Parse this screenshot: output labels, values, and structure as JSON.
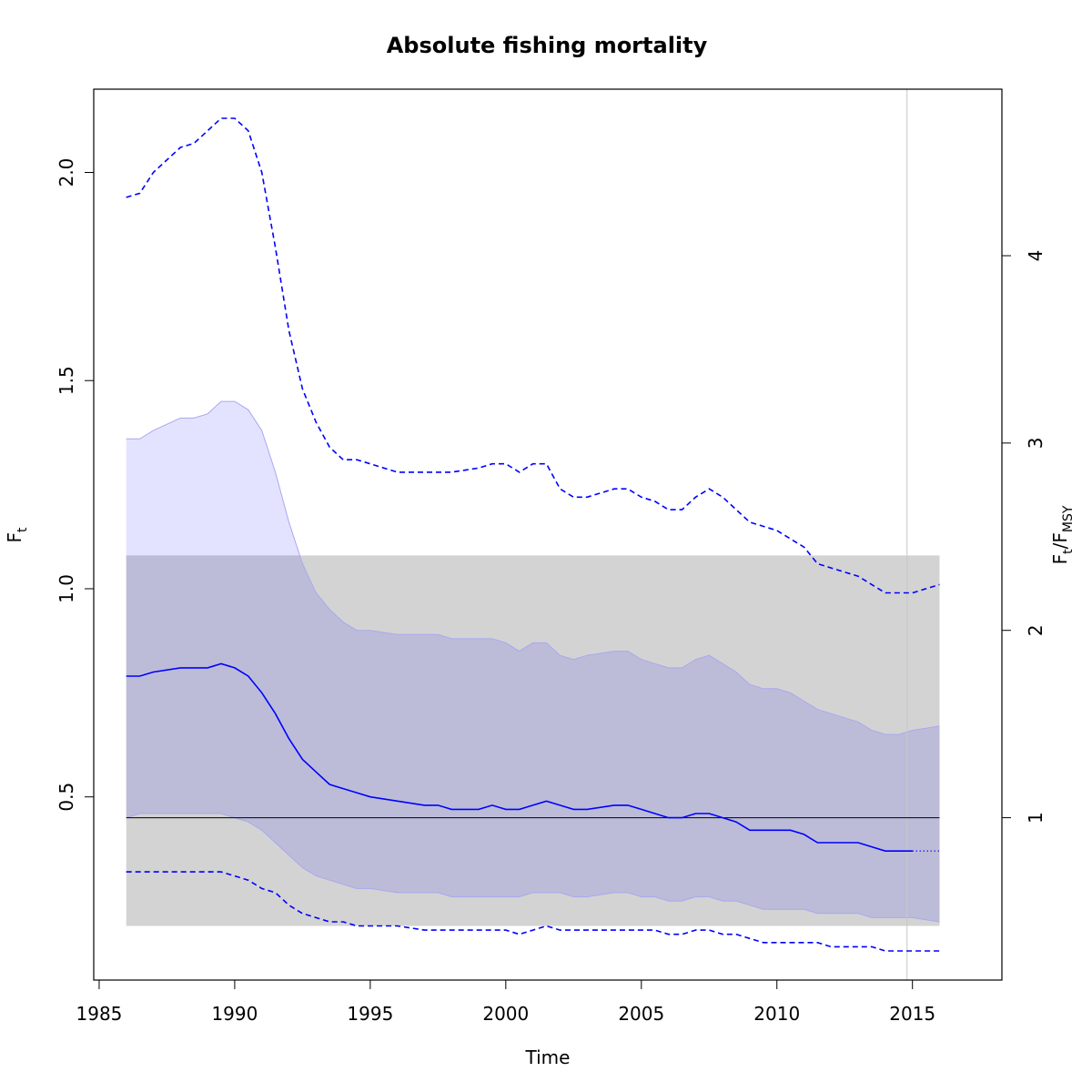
{
  "chart_data": {
    "type": "line",
    "title": "Absolute fishing mortality",
    "xlabel": "Time",
    "ylabel": "F",
    "ylabel_sub": "t",
    "y2label_parts": [
      "F",
      "t",
      "/F",
      "MSY"
    ],
    "xlim": [
      1984.8,
      2018.3
    ],
    "ylim": [
      0.06,
      2.2
    ],
    "x_ticks": [
      1985,
      1990,
      1995,
      2000,
      2005,
      2010,
      2015
    ],
    "y_ticks": [
      0.5,
      1.0,
      1.5,
      2.0
    ],
    "y_tick_labels": [
      "0.5",
      "1.0",
      "1.5",
      "2.0"
    ],
    "y2_ticks": [
      1,
      2,
      3,
      4
    ],
    "fmsy": 0.45,
    "grid": false,
    "legend": "none",
    "colors": {
      "estimate": "#0000ff",
      "ci_fill": "#e3e3ff",
      "ci_edge": "#a8a8f0",
      "fmsy_band": "#d3d3d3",
      "overlap": "#bcbcd9",
      "vline": "#c8c8c8"
    },
    "fmsy_band": {
      "x": [
        1986,
        2016
      ],
      "y": [
        0.19,
        1.08
      ]
    },
    "vertical_line_x": 2014.8,
    "series": [
      {
        "role": "estimate",
        "style": "solid",
        "x": [
          1986,
          1986.5,
          1987,
          1988,
          1988.5,
          1989,
          1989.5,
          1990,
          1990.5,
          1991,
          1991.5,
          1992,
          1992.5,
          1993,
          1993.5,
          1994,
          1994.5,
          1995,
          1996,
          1997,
          1997.5,
          1998,
          1999,
          1999.5,
          2000,
          2000.5,
          2001,
          2001.5,
          2002,
          2002.5,
          2003,
          2004,
          2004.5,
          2005,
          2005.5,
          2006,
          2006.5,
          2007,
          2007.5,
          2008,
          2008.5,
          2009,
          2009.5,
          2010,
          2010.5,
          2011,
          2011.5,
          2012,
          2012.5,
          2013,
          2013.5,
          2014,
          2014.5,
          2015
        ],
        "y": [
          0.79,
          0.79,
          0.8,
          0.81,
          0.81,
          0.81,
          0.82,
          0.81,
          0.79,
          0.75,
          0.7,
          0.64,
          0.59,
          0.56,
          0.53,
          0.52,
          0.51,
          0.5,
          0.49,
          0.48,
          0.48,
          0.47,
          0.47,
          0.48,
          0.47,
          0.47,
          0.48,
          0.49,
          0.48,
          0.47,
          0.47,
          0.48,
          0.48,
          0.47,
          0.46,
          0.45,
          0.45,
          0.46,
          0.46,
          0.45,
          0.44,
          0.42,
          0.42,
          0.42,
          0.42,
          0.41,
          0.39,
          0.39,
          0.39,
          0.39,
          0.38,
          0.37,
          0.37,
          0.37
        ]
      },
      {
        "role": "estimate_forecast",
        "style": "dotted",
        "x": [
          2015,
          2016
        ],
        "y": [
          0.37,
          0.37
        ]
      },
      {
        "role": "ci_upper",
        "style": "fill_edge",
        "x": [
          1986,
          1986.5,
          1987,
          1988,
          1988.5,
          1989,
          1989.5,
          1990,
          1990.5,
          1991,
          1991.5,
          1992,
          1992.5,
          1993,
          1993.5,
          1994,
          1994.5,
          1995,
          1996,
          1997,
          1997.5,
          1998,
          1999,
          1999.5,
          2000,
          2000.5,
          2001,
          2001.5,
          2002,
          2002.5,
          2003,
          2004,
          2004.5,
          2005,
          2005.5,
          2006,
          2006.5,
          2007,
          2007.5,
          2008,
          2008.5,
          2009,
          2009.5,
          2010,
          2010.5,
          2011,
          2011.5,
          2012,
          2012.5,
          2013,
          2013.5,
          2014,
          2014.5,
          2015,
          2016
        ],
        "y": [
          1.36,
          1.36,
          1.38,
          1.41,
          1.41,
          1.42,
          1.45,
          1.45,
          1.43,
          1.38,
          1.28,
          1.16,
          1.06,
          0.99,
          0.95,
          0.92,
          0.9,
          0.9,
          0.89,
          0.89,
          0.89,
          0.88,
          0.88,
          0.88,
          0.87,
          0.85,
          0.87,
          0.87,
          0.84,
          0.83,
          0.84,
          0.85,
          0.85,
          0.83,
          0.82,
          0.81,
          0.81,
          0.83,
          0.84,
          0.82,
          0.8,
          0.77,
          0.76,
          0.76,
          0.75,
          0.73,
          0.71,
          0.7,
          0.69,
          0.68,
          0.66,
          0.65,
          0.65,
          0.66,
          0.67
        ]
      },
      {
        "role": "ci_lower",
        "style": "fill_edge",
        "x": [
          1986,
          1986.5,
          1987,
          1988,
          1988.5,
          1989,
          1989.5,
          1990,
          1990.5,
          1991,
          1991.5,
          1992,
          1992.5,
          1993,
          1993.5,
          1994,
          1994.5,
          1995,
          1996,
          1997,
          1997.5,
          1998,
          1999,
          1999.5,
          2000,
          2000.5,
          2001,
          2001.5,
          2002,
          2002.5,
          2003,
          2004,
          2004.5,
          2005,
          2005.5,
          2006,
          2006.5,
          2007,
          2007.5,
          2008,
          2008.5,
          2009,
          2009.5,
          2010,
          2010.5,
          2011,
          2011.5,
          2012,
          2012.5,
          2013,
          2013.5,
          2014,
          2014.5,
          2015,
          2016
        ],
        "y": [
          0.45,
          0.46,
          0.46,
          0.46,
          0.46,
          0.46,
          0.46,
          0.45,
          0.44,
          0.42,
          0.39,
          0.36,
          0.33,
          0.31,
          0.3,
          0.29,
          0.28,
          0.28,
          0.27,
          0.27,
          0.27,
          0.26,
          0.26,
          0.26,
          0.26,
          0.26,
          0.27,
          0.27,
          0.27,
          0.26,
          0.26,
          0.27,
          0.27,
          0.26,
          0.26,
          0.25,
          0.25,
          0.26,
          0.26,
          0.25,
          0.25,
          0.24,
          0.23,
          0.23,
          0.23,
          0.23,
          0.22,
          0.22,
          0.22,
          0.22,
          0.21,
          0.21,
          0.21,
          0.21,
          0.2
        ]
      },
      {
        "role": "upper_dashed",
        "style": "dashed",
        "x": [
          1986,
          1986.5,
          1987,
          1988,
          1988.5,
          1989,
          1989.5,
          1990,
          1990.5,
          1991,
          1991.5,
          1992,
          1992.5,
          1993,
          1993.5,
          1994,
          1994.5,
          1995,
          1996,
          1997,
          1997.5,
          1998,
          1999,
          1999.5,
          2000,
          2000.5,
          2001,
          2001.5,
          2002,
          2002.5,
          2003,
          2004,
          2004.5,
          2005,
          2005.5,
          2006,
          2006.5,
          2007,
          2007.5,
          2008,
          2008.5,
          2009,
          2009.5,
          2010,
          2010.5,
          2011,
          2011.5,
          2012,
          2012.5,
          2013,
          2013.5,
          2014,
          2014.5,
          2015,
          2016
        ],
        "y": [
          1.94,
          1.95,
          2.0,
          2.06,
          2.07,
          2.1,
          2.13,
          2.13,
          2.1,
          2.0,
          1.82,
          1.62,
          1.48,
          1.4,
          1.34,
          1.31,
          1.31,
          1.3,
          1.28,
          1.28,
          1.28,
          1.28,
          1.29,
          1.3,
          1.3,
          1.28,
          1.3,
          1.3,
          1.24,
          1.22,
          1.22,
          1.24,
          1.24,
          1.22,
          1.21,
          1.19,
          1.19,
          1.22,
          1.24,
          1.22,
          1.19,
          1.16,
          1.15,
          1.14,
          1.12,
          1.1,
          1.06,
          1.05,
          1.04,
          1.03,
          1.01,
          0.99,
          0.99,
          0.99,
          1.01
        ]
      },
      {
        "role": "lower_dashed",
        "style": "dashed",
        "x": [
          1986,
          1986.5,
          1987,
          1988,
          1988.5,
          1989,
          1989.5,
          1990,
          1990.5,
          1991,
          1991.5,
          1992,
          1992.5,
          1993,
          1993.5,
          1994,
          1994.5,
          1995,
          1996,
          1997,
          1997.5,
          1998,
          1999,
          1999.5,
          2000,
          2000.5,
          2001,
          2001.5,
          2002,
          2002.5,
          2003,
          2004,
          2004.5,
          2005,
          2005.5,
          2006,
          2006.5,
          2007,
          2007.5,
          2008,
          2008.5,
          2009,
          2009.5,
          2010,
          2010.5,
          2011,
          2011.5,
          2012,
          2012.5,
          2013,
          2013.5,
          2014,
          2014.5,
          2015,
          2016
        ],
        "y": [
          0.32,
          0.32,
          0.32,
          0.32,
          0.32,
          0.32,
          0.32,
          0.31,
          0.3,
          0.28,
          0.27,
          0.24,
          0.22,
          0.21,
          0.2,
          0.2,
          0.19,
          0.19,
          0.19,
          0.18,
          0.18,
          0.18,
          0.18,
          0.18,
          0.18,
          0.17,
          0.18,
          0.19,
          0.18,
          0.18,
          0.18,
          0.18,
          0.18,
          0.18,
          0.18,
          0.17,
          0.17,
          0.18,
          0.18,
          0.17,
          0.17,
          0.16,
          0.15,
          0.15,
          0.15,
          0.15,
          0.15,
          0.14,
          0.14,
          0.14,
          0.14,
          0.13,
          0.13,
          0.13,
          0.13
        ]
      }
    ]
  }
}
